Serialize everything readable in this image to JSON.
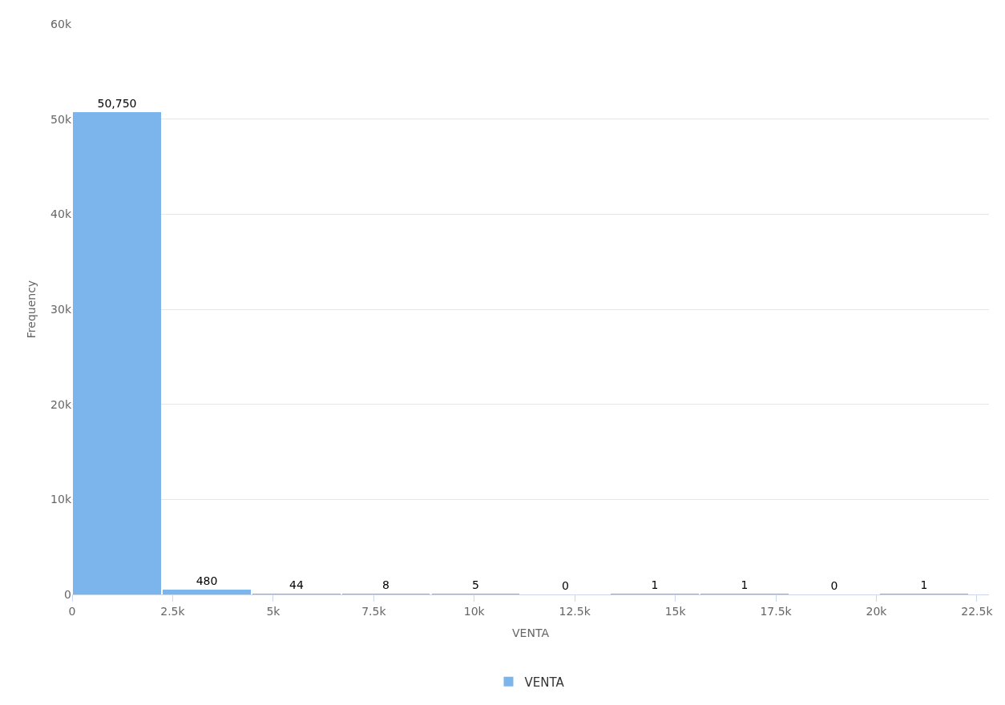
{
  "chart_data": {
    "type": "histogram",
    "xlabel": "VENTA",
    "ylabel": "Frequency",
    "bins": [
      0,
      2230,
      4460,
      6690,
      8920,
      11150,
      13380,
      15610,
      17840,
      20070,
      22300
    ],
    "series": [
      {
        "name": "VENTA",
        "color": "#7cb5ec",
        "values": [
          50750,
          480,
          44,
          8,
          5,
          0,
          1,
          1,
          0,
          1
        ],
        "value_labels": [
          "50,750",
          "480",
          "44",
          "8",
          "5",
          "0",
          "1",
          "1",
          "0",
          "1"
        ]
      }
    ],
    "xlim": [
      0,
      22800
    ],
    "xticks": [
      0,
      {
        "value": 2500,
        "label": "2.5k"
      },
      {
        "value": 5000,
        "label": "5k"
      },
      {
        "value": 7500,
        "label": "7.5k"
      },
      {
        "value": 10000,
        "label": "10k"
      },
      {
        "value": 12500,
        "label": "12.5k"
      },
      {
        "value": 15000,
        "label": "15k"
      },
      {
        "value": 17500,
        "label": "17.5k"
      },
      {
        "value": 20000,
        "label": "20k"
      },
      {
        "value": 22500,
        "label": "22.5k"
      }
    ],
    "ylim": [
      0,
      60000
    ],
    "yticks": [
      0,
      {
        "value": 10000,
        "label": "10k"
      },
      {
        "value": 20000,
        "label": "20k"
      },
      {
        "value": 30000,
        "label": "30k"
      },
      {
        "value": 40000,
        "label": "40k"
      },
      {
        "value": 50000,
        "label": "50k"
      },
      {
        "value": 60000,
        "label": "60k"
      }
    ],
    "grid": "y",
    "legend": "bottom"
  }
}
